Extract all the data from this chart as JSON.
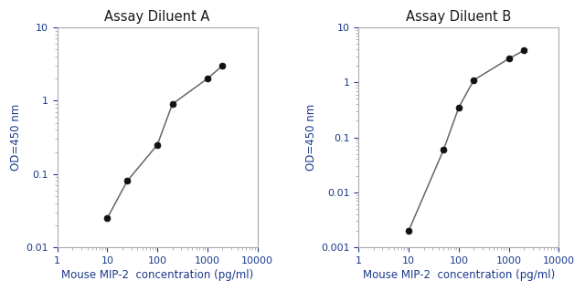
{
  "chart_A": {
    "title": "Assay Diluent A",
    "x": [
      10,
      25,
      100,
      200,
      1000,
      2000
    ],
    "y": [
      0.025,
      0.08,
      0.25,
      0.9,
      2.0,
      3.0
    ],
    "xlim": [
      1,
      10000
    ],
    "ylim": [
      0.01,
      10
    ],
    "xlabel": "Mouse MIP-2  concentration (pg/ml)",
    "ylabel": "OD=450 nm",
    "xticks": [
      1,
      10,
      100,
      1000,
      10000
    ],
    "yticks": [
      0.01,
      0.1,
      1,
      10
    ]
  },
  "chart_B": {
    "title": "Assay Diluent B",
    "x": [
      10,
      50,
      100,
      200,
      1000,
      2000
    ],
    "y": [
      0.002,
      0.06,
      0.35,
      1.1,
      2.7,
      3.8
    ],
    "xlim": [
      1,
      10000
    ],
    "ylim": [
      0.001,
      10
    ],
    "xlabel": "Mouse MIP-2  concentration (pg/ml)",
    "ylabel": "OD=450 nm",
    "xticks": [
      1,
      10,
      100,
      1000,
      10000
    ],
    "yticks": [
      0.001,
      0.01,
      0.1,
      1,
      10
    ]
  },
  "line_color": "#666666",
  "marker_color": "#111111",
  "title_color": "#1a1a1a",
  "label_color": "#1a3a8a",
  "tick_label_color": "#1a3a8a",
  "background_color": "#ffffff",
  "title_fontsize": 10.5,
  "label_fontsize": 8.5,
  "tick_fontsize": 8
}
